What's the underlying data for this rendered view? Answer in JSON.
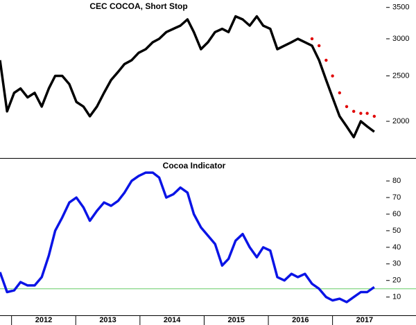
{
  "chart_data": [
    {
      "type": "line",
      "title": "CEC COCOA, Short Stop",
      "log_scale": true,
      "grid": false,
      "xlim": [
        2011.82,
        2018.3
      ],
      "ylim": [
        1670,
        3630
      ],
      "yticks": [
        2000,
        2500,
        3000,
        3500
      ],
      "x": [
        2011.82,
        2011.93,
        2012.04,
        2012.14,
        2012.25,
        2012.36,
        2012.47,
        2012.58,
        2012.68,
        2012.79,
        2012.9,
        2013.01,
        2013.12,
        2013.22,
        2013.33,
        2013.44,
        2013.55,
        2013.66,
        2013.76,
        2013.87,
        2013.98,
        2014.09,
        2014.2,
        2014.3,
        2014.41,
        2014.52,
        2014.63,
        2014.74,
        2014.84,
        2014.95,
        2015.06,
        2015.17,
        2015.28,
        2015.38,
        2015.49,
        2015.6,
        2015.71,
        2015.82,
        2015.92,
        2016.03,
        2016.14,
        2016.25,
        2016.36,
        2016.46,
        2016.57,
        2016.68,
        2016.79,
        2016.9,
        2017.0,
        2017.11,
        2017.22,
        2017.33,
        2017.44,
        2017.54,
        2017.65
      ],
      "series": [
        {
          "color": "#000000",
          "style": "line",
          "values": [
            2700,
            2100,
            2300,
            2350,
            2250,
            2300,
            2150,
            2350,
            2500,
            2500,
            2400,
            2200,
            2150,
            2050,
            2150,
            2300,
            2450,
            2550,
            2650,
            2700,
            2800,
            2850,
            2950,
            3000,
            3100,
            3150,
            3200,
            3300,
            3100,
            2850,
            2950,
            3100,
            3150,
            3100,
            3350,
            3300,
            3200,
            3350,
            3200,
            3150,
            2850,
            2900,
            2950,
            3000,
            2950,
            2900,
            2700,
            2450,
            2250,
            2050,
            1950,
            1850,
            2000,
            1950,
            1900
          ]
        },
        {
          "color": "#e00000",
          "style": "dots",
          "values": [
            null,
            null,
            null,
            null,
            null,
            null,
            null,
            null,
            null,
            null,
            null,
            null,
            null,
            null,
            null,
            null,
            null,
            null,
            null,
            null,
            null,
            null,
            null,
            null,
            null,
            null,
            null,
            null,
            null,
            null,
            null,
            null,
            null,
            null,
            null,
            null,
            null,
            null,
            null,
            null,
            null,
            null,
            null,
            null,
            null,
            3000,
            2900,
            2700,
            2500,
            2300,
            2150,
            2100,
            2080,
            2080,
            2050
          ]
        }
      ]
    },
    {
      "type": "line",
      "title": "Cocoa Indicator",
      "grid": false,
      "xlim": [
        2011.82,
        2018.3
      ],
      "ylim": [
        -1,
        93
      ],
      "yticks": [
        10,
        20,
        30,
        40,
        50,
        60,
        70,
        80
      ],
      "xticks": [
        2012,
        2013,
        2014,
        2015,
        2016,
        2017
      ],
      "reference_line": 15,
      "reference_color": "#66cc66",
      "x": [
        2011.82,
        2011.93,
        2012.04,
        2012.14,
        2012.25,
        2012.36,
        2012.47,
        2012.58,
        2012.68,
        2012.79,
        2012.9,
        2013.01,
        2013.12,
        2013.22,
        2013.33,
        2013.44,
        2013.55,
        2013.66,
        2013.76,
        2013.87,
        2013.98,
        2014.09,
        2014.2,
        2014.3,
        2014.41,
        2014.52,
        2014.63,
        2014.74,
        2014.84,
        2014.95,
        2015.06,
        2015.17,
        2015.28,
        2015.38,
        2015.49,
        2015.6,
        2015.71,
        2015.82,
        2015.92,
        2016.03,
        2016.14,
        2016.25,
        2016.36,
        2016.46,
        2016.57,
        2016.68,
        2016.79,
        2016.9,
        2017.0,
        2017.11,
        2017.22,
        2017.33,
        2017.44,
        2017.54,
        2017.65
      ],
      "series": [
        {
          "color": "#0a14e6",
          "style": "line",
          "values": [
            25,
            13,
            14,
            19,
            17,
            17,
            22,
            35,
            50,
            58,
            67,
            70,
            64,
            56,
            62,
            67,
            65,
            68,
            73,
            80,
            83,
            85,
            85,
            82,
            70,
            72,
            76,
            73,
            60,
            52,
            47,
            42,
            29,
            33,
            44,
            48,
            40,
            34,
            40,
            38,
            22,
            20,
            24,
            22,
            24,
            18,
            15,
            10,
            8,
            9,
            7,
            10,
            13,
            13,
            16
          ]
        }
      ]
    }
  ]
}
